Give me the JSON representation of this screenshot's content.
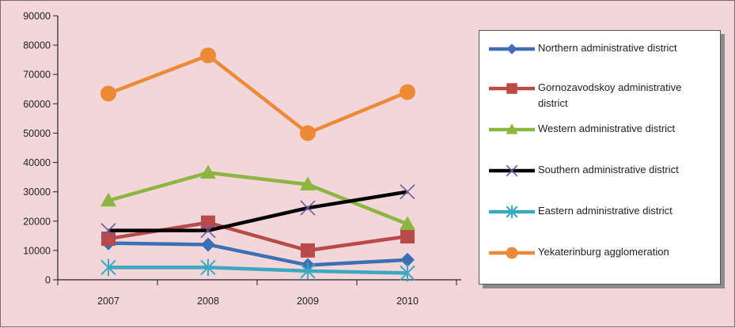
{
  "chart_data": {
    "type": "line",
    "title": "",
    "xlabel": "",
    "ylabel": "",
    "categories": [
      "2007",
      "2008",
      "2009",
      "2010"
    ],
    "ylim": [
      0,
      90000
    ],
    "yticks": [
      "0",
      "10000",
      "20000",
      "30000",
      "40000",
      "50000",
      "60000",
      "70000",
      "80000",
      "90000"
    ],
    "grid": false,
    "legend_position": "right",
    "series": [
      {
        "name": "Northern administrative district",
        "color": "#3d6fb5",
        "marker": "diamond",
        "values": [
          12500,
          12000,
          5000,
          6800
        ]
      },
      {
        "name": "Gornozavodskoy administrative district",
        "color": "#b84a47",
        "marker": "square",
        "values": [
          14000,
          19500,
          10000,
          14800
        ]
      },
      {
        "name": "Western administrative district",
        "color": "#8db542",
        "marker": "triangle",
        "values": [
          27000,
          36500,
          32500,
          19000
        ]
      },
      {
        "name": "Southern administrative district",
        "color": "#000000",
        "marker": "x",
        "values": [
          16800,
          16800,
          24500,
          30000
        ]
      },
      {
        "name": "Eastern administrative district",
        "color": "#3da7c2",
        "marker": "star",
        "values": [
          4200,
          4200,
          3000,
          2300
        ]
      },
      {
        "name": "Yekaterinburg agglomeration",
        "color": "#ed8a37",
        "marker": "circle",
        "values": [
          63500,
          76500,
          50000,
          64000
        ]
      }
    ]
  }
}
